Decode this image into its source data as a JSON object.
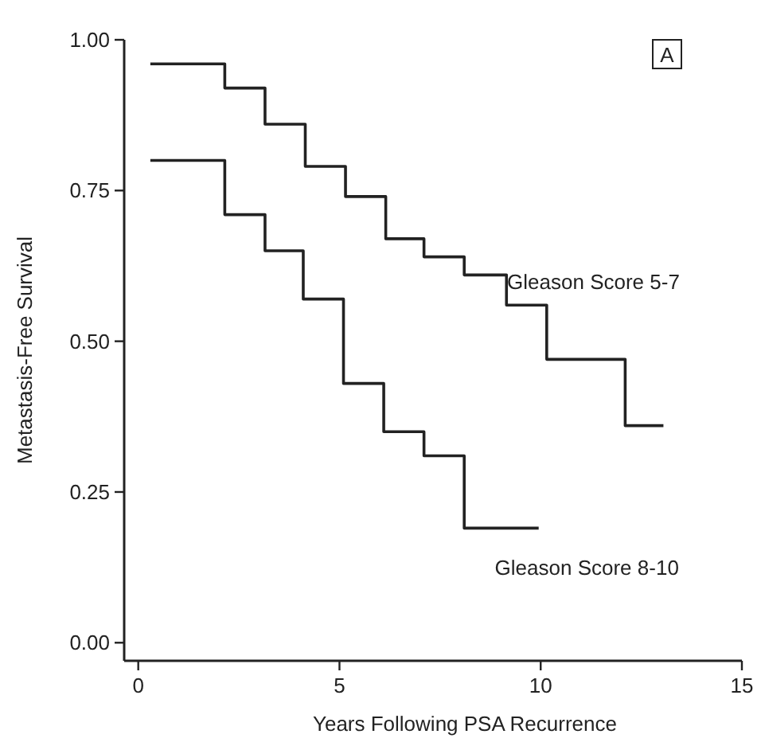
{
  "chart_data": {
    "type": "step",
    "xlabel": "Years Following PSA Recurrence",
    "ylabel": "Metastasis-Free Survival",
    "xlim": [
      -0.35,
      15
    ],
    "ylim": [
      -0.03,
      1.0
    ],
    "xticks": [
      0,
      5,
      10,
      15
    ],
    "yticks": [
      {
        "value": 0,
        "label": "0.00"
      },
      {
        "value": 0.25,
        "label": "0.25"
      },
      {
        "value": 0.5,
        "label": "0.50"
      },
      {
        "value": 0.75,
        "label": "0.75"
      },
      {
        "value": 1,
        "label": "1.00"
      }
    ],
    "grid": false,
    "marker": "none",
    "line_style": "solid",
    "series": [
      {
        "color": "#222222",
        "x": [
          0.3,
          2.15,
          3.15,
          4.15,
          5.15,
          6.15,
          7.1,
          8.1,
          9.15,
          10.15,
          12.1,
          13.05
        ],
        "values": [
          0.96,
          0.92,
          0.86,
          0.79,
          0.74,
          0.67,
          0.64,
          0.61,
          0.56,
          0.47,
          0.36,
          0.36
        ]
      },
      {
        "color": "#222222",
        "x": [
          0.3,
          2.15,
          3.15,
          4.1,
          5.1,
          6.1,
          7.1,
          8.1,
          9.95
        ],
        "values": [
          0.8,
          0.71,
          0.65,
          0.57,
          0.43,
          0.35,
          0.31,
          0.19,
          0.19
        ]
      }
    ],
    "annotations": [
      "Gleason Score 5-7",
      "Gleason Score 8-10",
      "A"
    ]
  }
}
